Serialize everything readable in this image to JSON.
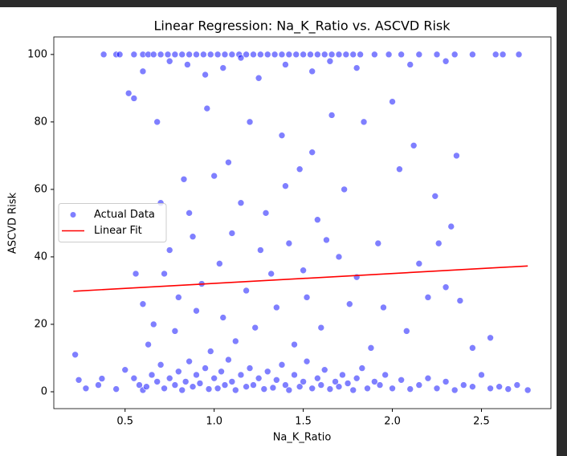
{
  "chart_data": {
    "type": "scatter",
    "title": "Linear Regression: Na_K_Ratio vs. ASCVD Risk",
    "x_label": "Na_K_Ratio",
    "y_label": "ASCVD Risk",
    "legend": "center left",
    "xlim": [
      0.1,
      2.89
    ],
    "ylim": [
      -5,
      105.2
    ],
    "xticks": [
      0.5,
      {
        "value": 1,
        "label": "1.0"
      },
      1.5,
      {
        "value": 2,
        "label": "2.0"
      },
      2.5
    ],
    "yticks": [
      0,
      20,
      40,
      60,
      80,
      100
    ],
    "series": [
      {
        "name": "Actual Data",
        "color": "blue",
        "type": "scatter",
        "x": [
          0.22,
          0.24,
          0.28,
          0.35,
          0.37,
          0.45,
          0.5,
          0.55,
          0.58,
          0.6,
          0.62,
          0.65,
          0.68,
          0.7,
          0.72,
          0.75,
          0.78,
          0.8,
          0.82,
          0.84,
          0.86,
          0.88,
          0.9,
          0.92,
          0.95,
          0.97,
          1.0,
          1.02,
          1.04,
          1.06,
          1.08,
          1.1,
          1.12,
          1.15,
          1.18,
          1.2,
          1.22,
          1.25,
          1.28,
          1.3,
          1.33,
          1.35,
          1.38,
          1.4,
          1.42,
          1.45,
          1.48,
          1.5,
          1.52,
          1.55,
          1.58,
          1.6,
          1.62,
          1.65,
          1.68,
          1.7,
          1.72,
          1.75,
          1.78,
          1.8,
          1.83,
          1.86,
          1.9,
          1.93,
          1.96,
          2.0,
          2.05,
          2.1,
          2.15,
          2.2,
          2.25,
          2.3,
          2.35,
          2.4,
          2.45,
          2.5,
          2.55,
          2.6,
          2.65,
          2.7,
          2.76,
          0.38,
          0.45,
          0.47,
          0.55,
          0.6,
          0.63,
          0.66,
          0.7,
          0.74,
          0.78,
          0.82,
          0.86,
          0.9,
          0.94,
          0.98,
          1.02,
          1.06,
          1.1,
          1.14,
          1.18,
          1.22,
          1.26,
          1.3,
          1.34,
          1.38,
          1.42,
          1.46,
          1.5,
          1.54,
          1.58,
          1.62,
          1.66,
          1.7,
          1.74,
          1.78,
          1.82,
          1.9,
          1.98,
          2.05,
          2.15,
          2.25,
          2.35,
          2.45,
          2.58,
          2.62,
          2.71,
          0.6,
          0.75,
          0.85,
          0.95,
          1.05,
          1.15,
          1.25,
          1.4,
          1.55,
          1.65,
          1.8,
          2.1,
          2.3,
          0.52,
          0.55,
          0.56,
          0.6,
          0.63,
          0.66,
          0.68,
          0.7,
          0.72,
          0.75,
          0.78,
          0.8,
          0.83,
          0.86,
          0.88,
          0.9,
          0.93,
          0.96,
          0.98,
          1.0,
          1.03,
          1.05,
          1.08,
          1.1,
          1.12,
          1.15,
          1.18,
          1.2,
          1.23,
          1.26,
          1.29,
          1.32,
          1.35,
          1.38,
          1.4,
          1.42,
          1.45,
          1.48,
          1.5,
          1.52,
          1.55,
          1.58,
          1.6,
          1.63,
          1.66,
          1.7,
          1.73,
          1.76,
          1.8,
          1.84,
          1.88,
          1.92,
          1.95,
          2.0,
          2.04,
          2.08,
          2.12,
          2.15,
          2.2,
          2.24,
          2.26,
          2.3,
          2.33,
          2.36,
          2.38,
          2.45,
          2.55
        ],
        "values": [
          11,
          3.5,
          1,
          2,
          3.9,
          0.8,
          6.5,
          4,
          2,
          0.5,
          1.5,
          5,
          3,
          8,
          1,
          4,
          2,
          6,
          0.5,
          3,
          9,
          1.5,
          5,
          2.5,
          7,
          0.8,
          4,
          1,
          6,
          2,
          9.5,
          3,
          0.5,
          5,
          1.5,
          7,
          2,
          4,
          0.8,
          6,
          1.2,
          3.5,
          8,
          2,
          0.5,
          5,
          1.5,
          3,
          9,
          1,
          4,
          2,
          6.5,
          0.8,
          3,
          1.5,
          5,
          2.5,
          0.5,
          4,
          7,
          1,
          3,
          2,
          5,
          1,
          3.5,
          0.8,
          2,
          4,
          1,
          3,
          0.5,
          2,
          1.5,
          5,
          1,
          1.5,
          0.8,
          2,
          0.5,
          100,
          100,
          100,
          100,
          100,
          100,
          100,
          100,
          100,
          100,
          100,
          100,
          100,
          100,
          100,
          100,
          100,
          100,
          100,
          100,
          100,
          100,
          100,
          100,
          100,
          100,
          100,
          100,
          100,
          100,
          100,
          100,
          100,
          100,
          100,
          100,
          100,
          100,
          100,
          100,
          100,
          100,
          100,
          100,
          100,
          100,
          95,
          98,
          97,
          94,
          96,
          99,
          93,
          97,
          95,
          98,
          96,
          97,
          98,
          88.5,
          87,
          35,
          26,
          14,
          20,
          80,
          56,
          35,
          42,
          18,
          28,
          63,
          53,
          46,
          24,
          32,
          84,
          12,
          64,
          38,
          22,
          68,
          47,
          15,
          56,
          30,
          80,
          19,
          42,
          53,
          35,
          25,
          76,
          61,
          44,
          14,
          66,
          36,
          28,
          71,
          51,
          19,
          45,
          82,
          40,
          60,
          26,
          34,
          80,
          13,
          44,
          25,
          86,
          66,
          18,
          73,
          38,
          28,
          58,
          44,
          31,
          49,
          70,
          27,
          13,
          16
        ]
      },
      {
        "name": "Linear Fit",
        "color": "red",
        "type": "line",
        "x": [
          0.21,
          2.76
        ],
        "values": [
          29.8,
          37.3
        ]
      }
    ]
  }
}
